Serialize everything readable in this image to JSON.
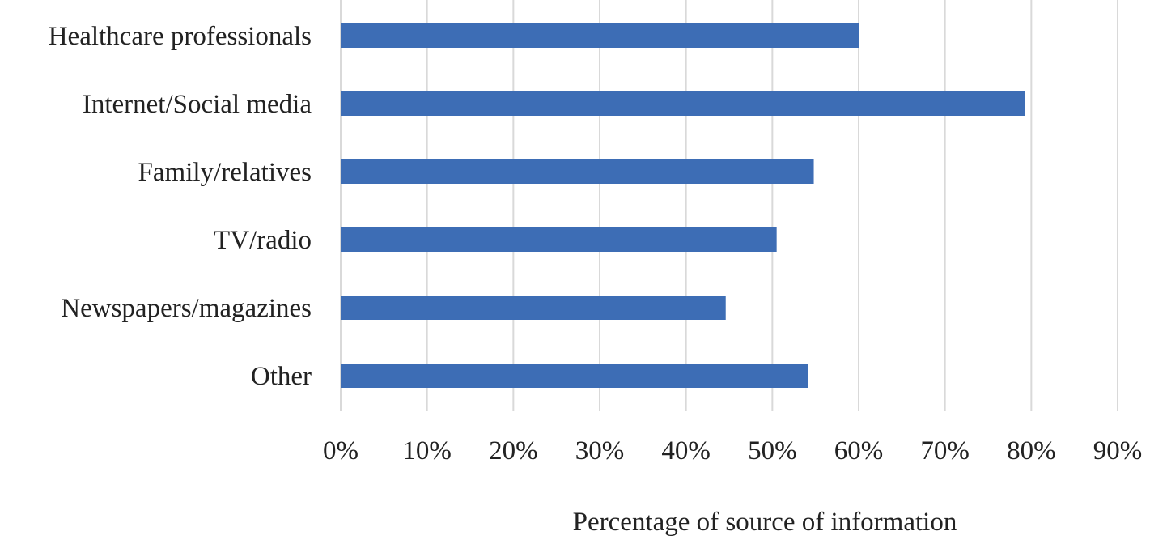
{
  "chart_data": {
    "type": "bar",
    "orientation": "horizontal",
    "categories": [
      "Healthcare professionals",
      "Internet/Social media",
      "Family/relatives",
      "TV/radio",
      "Newspapers/magazines",
      "Other"
    ],
    "values": [
      60,
      79.3,
      54.8,
      50.5,
      44.6,
      54.1
    ],
    "value_unit": "%",
    "xlabel": "Percentage of source of information",
    "ylabel": "",
    "xlim": [
      0,
      90
    ],
    "xticks": [
      "0%",
      "10%",
      "20%",
      "30%",
      "40%",
      "50%",
      "60%",
      "70%",
      "80%",
      "90%"
    ],
    "grid": "vertical",
    "legend": "none",
    "colors": {
      "bar": "#3d6db5",
      "grid": "#d9d9d9"
    }
  }
}
